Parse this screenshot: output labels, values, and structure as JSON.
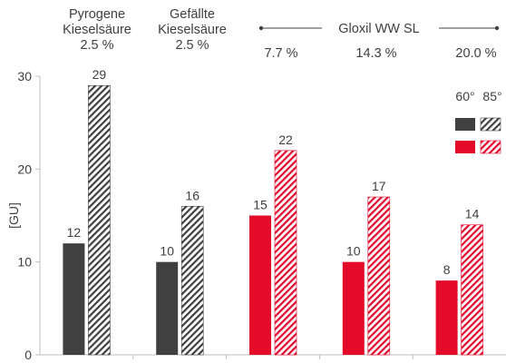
{
  "header": {
    "groups": [
      {
        "line1": "Pyrogene",
        "line2": "Kieselsäure",
        "pct": "2.5 %"
      },
      {
        "line1": "Gefällte",
        "line2": "Kieselsäure",
        "pct": "2.5 %"
      },
      {
        "pct": "7.7 %"
      },
      {
        "pct": "14.3 %"
      },
      {
        "pct": "20.0 %"
      }
    ],
    "bracket_label": "Gloxil WW SL"
  },
  "legend": {
    "label_60": "60°",
    "label_85": "85°"
  },
  "colors": {
    "dark": "#404040",
    "red": "#e30a2a",
    "axis": "#bfbfbf",
    "text": "#404040"
  },
  "chart_data": {
    "type": "bar",
    "categories": [
      "Pyrogene Kieselsäure 2.5 %",
      "Gefällte Kieselsäure 2.5 %",
      "Gloxil WW SL 7.7 %",
      "Gloxil WW SL 14.3 %",
      "Gloxil WW SL 20.0 %"
    ],
    "series": [
      {
        "name": "60°",
        "values": [
          12,
          10,
          15,
          10,
          8
        ],
        "fill": "solid"
      },
      {
        "name": "85°",
        "values": [
          29,
          16,
          22,
          17,
          14
        ],
        "fill": "hatched"
      }
    ],
    "bar_colors": [
      "dark",
      "dark",
      "red",
      "red",
      "red"
    ],
    "ylabel": "[GU]",
    "ylim": [
      0,
      30
    ],
    "yticks": [
      0,
      10,
      20,
      30
    ],
    "grid": false,
    "legend_position": "top-right"
  }
}
